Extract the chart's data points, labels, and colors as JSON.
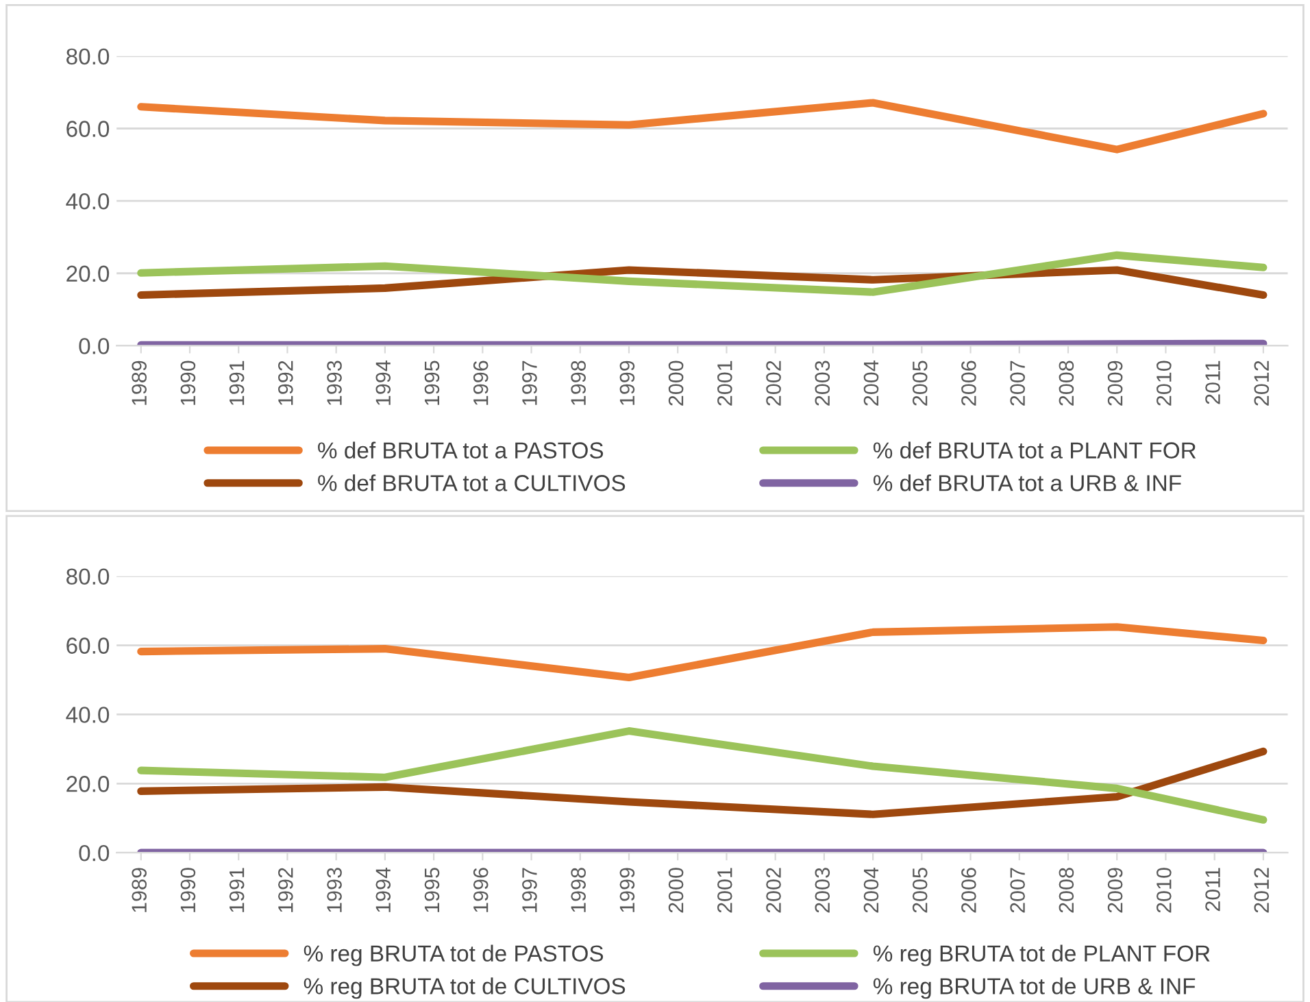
{
  "chart_data": [
    {
      "type": "line",
      "x": [
        1989,
        1994,
        1999,
        2004,
        2009,
        2012
      ],
      "xlim": [
        1988.5,
        2012.5
      ],
      "xticks": [
        1989,
        1990,
        1991,
        1992,
        1993,
        1994,
        1995,
        1996,
        1997,
        1998,
        1999,
        2000,
        2001,
        2002,
        2003,
        2004,
        2005,
        2006,
        2007,
        2008,
        2009,
        2010,
        2011,
        2012
      ],
      "ylim": [
        0,
        80
      ],
      "yticks": [
        {
          "value": 0,
          "label": "0.0"
        },
        {
          "value": 20,
          "label": "20.0"
        },
        {
          "value": 40,
          "label": "40.0"
        },
        {
          "value": 60,
          "label": "60.0"
        },
        {
          "value": 80,
          "label": "80.0"
        }
      ],
      "grid": "y",
      "legend": "bottom",
      "marker": "none",
      "line_style": "solid",
      "series": [
        {
          "name": "% def BRUTA tot a PASTOS",
          "color": "#ed7d31",
          "values": [
            66.0,
            62.2,
            61.0,
            67.1,
            54.2,
            64.1
          ]
        },
        {
          "name": "% def BRUTA tot a CULTIVOS",
          "color": "#9e480e",
          "values": [
            14.0,
            15.9,
            20.9,
            18.2,
            20.9,
            14.0
          ]
        },
        {
          "name": "% def BRUTA tot a PLANT FOR",
          "color": "#9bc35a",
          "values": [
            20.1,
            22.0,
            17.8,
            14.8,
            25.0,
            21.6
          ]
        },
        {
          "name": "% def BRUTA tot a URB & INF",
          "color": "#8064a2",
          "values": [
            0.2,
            0.2,
            0.2,
            0.2,
            0.5,
            0.6
          ]
        }
      ]
    },
    {
      "type": "line",
      "x": [
        1989,
        1994,
        1999,
        2004,
        2009,
        2012
      ],
      "xlim": [
        1988.5,
        2012.5
      ],
      "xticks": [
        1989,
        1990,
        1991,
        1992,
        1993,
        1994,
        1995,
        1996,
        1997,
        1998,
        1999,
        2000,
        2001,
        2002,
        2003,
        2004,
        2005,
        2006,
        2007,
        2008,
        2009,
        2010,
        2011,
        2012
      ],
      "ylim": [
        0,
        80
      ],
      "yticks": [
        {
          "value": 0,
          "label": "0.0"
        },
        {
          "value": 20,
          "label": "20.0"
        },
        {
          "value": 40,
          "label": "40.0"
        },
        {
          "value": 60,
          "label": "60.0"
        },
        {
          "value": 80,
          "label": "80.0"
        }
      ],
      "grid": "y",
      "legend": "bottom",
      "marker": "none",
      "line_style": "solid",
      "series": [
        {
          "name": "% reg BRUTA tot de PASTOS",
          "color": "#ed7d31",
          "values": [
            58.2,
            59.0,
            50.7,
            63.8,
            65.3,
            61.4
          ]
        },
        {
          "name": "% reg BRUTA tot de CULTIVOS",
          "color": "#9e480e",
          "values": [
            17.8,
            19.0,
            14.7,
            11.1,
            16.2,
            29.3
          ]
        },
        {
          "name": "% reg BRUTA tot de PLANT FOR",
          "color": "#9bc35a",
          "values": [
            23.8,
            21.8,
            35.2,
            25.0,
            18.6,
            9.5
          ]
        },
        {
          "name": "% reg BRUTA tot de URB & INF",
          "color": "#8064a2",
          "values": [
            0,
            0,
            0,
            0,
            0,
            0
          ]
        }
      ]
    }
  ]
}
